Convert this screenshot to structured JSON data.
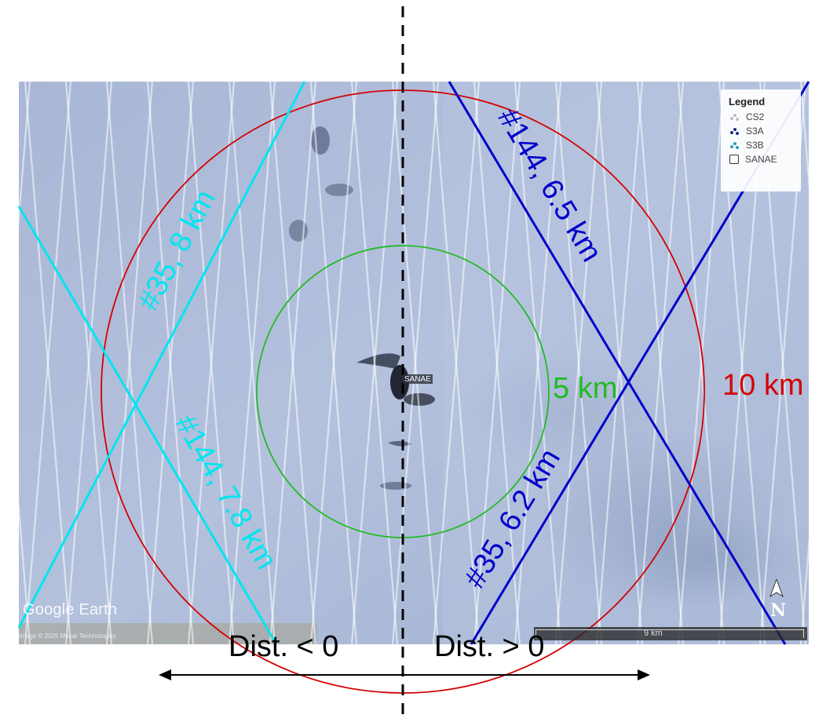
{
  "map": {
    "station_label": "SANAE",
    "watermark": "Google Earth",
    "image_credit": "Image © 2025 Maxar Technologies",
    "scale_label": "9 km",
    "compass_label": "N"
  },
  "legend": {
    "title": "Legend",
    "items": [
      {
        "label": "CS2",
        "icon": "satellite-icon",
        "color": "#bbbbbb"
      },
      {
        "label": "S3A",
        "icon": "satellite-icon",
        "color": "#1a2a8a"
      },
      {
        "label": "S3B",
        "icon": "satellite-icon",
        "color": "#2aa0b0"
      },
      {
        "label": "SANAE",
        "icon": "checkbox-icon",
        "color": "#333333"
      }
    ]
  },
  "circles": [
    {
      "label": "10 km",
      "color": "#d40000"
    },
    {
      "label": "5 km",
      "color": "#22bb22"
    }
  ],
  "tracks": [
    {
      "label": "#35, 8 km",
      "color": "#00e5ef"
    },
    {
      "label": "#144, 7.8 km",
      "color": "#00e5ef"
    },
    {
      "label": "#144, 6.5 km",
      "color": "#0000cc"
    },
    {
      "label": "#35, 6.2 km",
      "color": "#0000cc"
    }
  ],
  "axis": {
    "left_label": "Dist. < 0",
    "right_label": "Dist. > 0"
  }
}
